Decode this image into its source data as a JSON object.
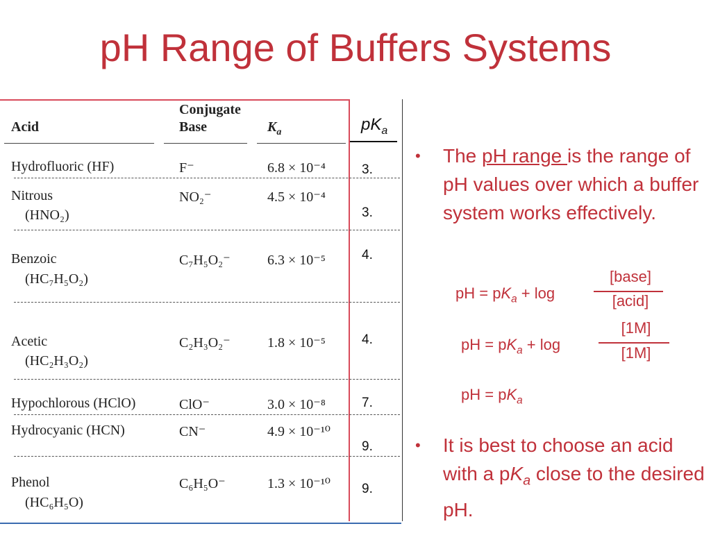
{
  "slide": {
    "title": "pH Range of Buffers Systems"
  },
  "table": {
    "headers": {
      "acid": "Acid",
      "conj1": "Conjugate",
      "conj2": "Base",
      "ka": "K",
      "ka_sub": "a"
    },
    "rows": [
      {
        "acid1": "Hydrofluoric (HF)",
        "acid2": "",
        "base": "F⁻",
        "ka": "6.8 × 10⁻⁴",
        "pka": "3."
      },
      {
        "acid1": "Nitrous",
        "acid2": "(HNO₂)",
        "base": "NO₂⁻",
        "ka": "4.5 × 10⁻⁴",
        "pka": "3."
      },
      {
        "acid1": "Benzoic",
        "acid2": "(HC₇H₅O₂)",
        "base": "C₇H₅O₂⁻",
        "ka": "6.3 × 10⁻⁵",
        "pka": "4."
      },
      {
        "acid1": "Acetic",
        "acid2": "(HC₂H₃O₂)",
        "base": "C₂H₃O₂⁻",
        "ka": "1.8 × 10⁻⁵",
        "pka": "4."
      },
      {
        "acid1": "Hypochlorous (HClO)",
        "acid2": "",
        "base": "ClO⁻",
        "ka": "3.0 × 10⁻⁸",
        "pka": "7."
      },
      {
        "acid1": "Hydrocyanic (HCN)",
        "acid2": "",
        "base": "CN⁻",
        "ka": "4.9 × 10⁻¹⁰",
        "pka": "9."
      },
      {
        "acid1": "Phenol",
        "acid2": "(HC₆H₅O)",
        "base": "C₆H₅O⁻",
        "ka": "1.3 × 10⁻¹⁰",
        "pka": "9."
      }
    ],
    "pka_header": "pK",
    "pka_header_sub": "a"
  },
  "bullets": {
    "b1_pre": "The ",
    "b1_underline": "pH range ",
    "b1_post": "is the range of pH values over which a buffer system works effectively.",
    "b2_pre": "It is best to choose an acid with a p",
    "b2_k": "K",
    "b2_sub": "a",
    "b2_post": " close to the desired pH.",
    "bullet_char": "•"
  },
  "equations": {
    "eq1_lhs": "pH = p",
    "eq1_k": "K",
    "eq1_sub": "a",
    "eq1_rhs": " + log",
    "eq1_num": "[base]",
    "eq1_den": "[acid]",
    "eq2_lhs": "pH = p",
    "eq2_k": "K",
    "eq2_sub": "a",
    "eq2_rhs": " + log",
    "eq2_num": "[1M]",
    "eq2_den": "[1M]",
    "eq3_lhs": "pH = p",
    "eq3_k": "K",
    "eq3_sub": "a"
  }
}
